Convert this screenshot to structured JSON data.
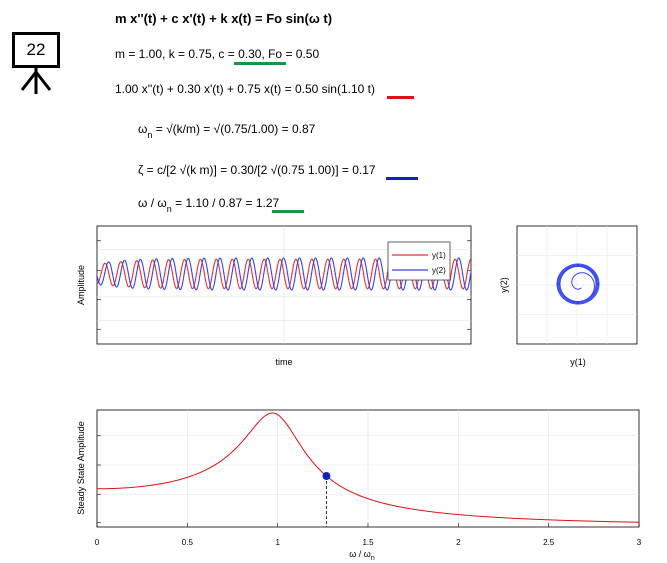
{
  "badge": {
    "number": "22"
  },
  "equations": {
    "title": "m x''(t) + c x'(t) + k x(t) = Fo sin(ω t)",
    "params_a": "m = 1.00, k = 0.75, ",
    "params_c": "c = 0.30",
    "params_b": ", Fo = 0.50",
    "ode_a": "1.00 x''(t) + 0.30 x'(t) + 0.75 x(t) = 0.50 sin(",
    "ode_w": "1.10",
    "ode_b": " t)",
    "wn_a": "ω",
    "wn_sub": "n",
    "wn_b": " = √(k/m) = √(0.75/1.00) = 0.87",
    "zeta_a": "ζ = c/[2 √(k m)] = 0.30/[2 √(0.75 1.00)] = ",
    "zeta_v": "0.17",
    "ratio_a": "ω / ω",
    "ratio_sub": "n",
    "ratio_b": " = 1.10 / 0.87 = ",
    "ratio_v": "1.27"
  },
  "colors": {
    "green": "#119944",
    "red": "#dd1111",
    "blue": "#1122bb",
    "series1": "#e83030",
    "series2": "#3344ee"
  },
  "chart_data": [
    {
      "type": "line",
      "xlabel": "time",
      "ylabel": "Amplitude",
      "legend": "top-right",
      "series": [
        {
          "name": "y(1)",
          "frequency": 1.1,
          "amplitude": 0.37
        },
        {
          "name": "y(2)",
          "frequency": 1.1,
          "amplitude": 0.4
        }
      ]
    },
    {
      "type": "line",
      "xlabel": "y(1)",
      "ylabel": "y(2)",
      "description": "phase portrait"
    },
    {
      "type": "line",
      "xlabel": "ω / ω",
      "xlabel_sub": "n",
      "ylabel": "Steady State Amplitude",
      "xlim": [
        0,
        3
      ],
      "xticks": [
        "0",
        "0.5",
        "1",
        "1.5",
        "2",
        "2.5",
        "3"
      ],
      "params": {
        "zeta": 0.17,
        "F0": 0.5,
        "k": 0.75
      },
      "marker": {
        "x": 1.27
      }
    }
  ]
}
